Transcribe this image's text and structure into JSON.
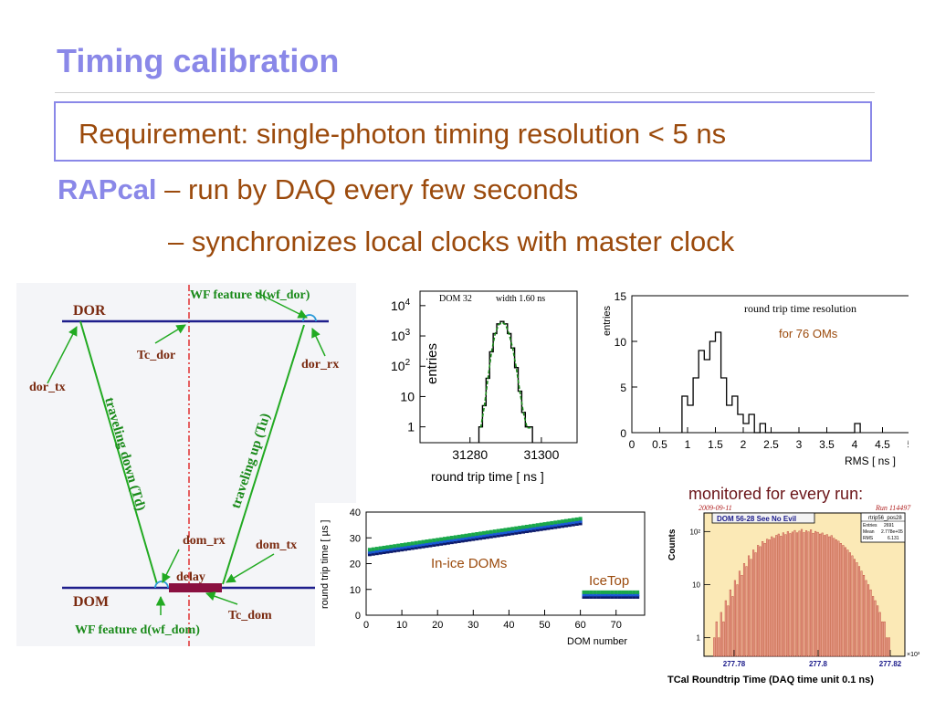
{
  "slide": {
    "title": "Timing calibration",
    "requirement": "Requirement:  single-photon timing resolution < 5 ns",
    "rapcal_name": "RAPcal",
    "rapcal_line1": " – run by DAQ every few seconds",
    "rapcal_line2": "– synchronizes local clocks with master clock",
    "monitored_caption": "monitored for every run:"
  },
  "diagram": {
    "dor_label": "DOR",
    "dom_label": "DOM",
    "wf_feature_dor": "WF feature d(wf_dor)",
    "wf_feature_dom": "WF feature d(wf_dom)",
    "tc_dor": "Tc_dor",
    "tc_dom": "Tc_dom",
    "dor_tx": "dor_tx",
    "dor_rx": "dor_rx",
    "dom_rx": "dom_rx",
    "dom_tx": "dom_tx",
    "delay": "delay",
    "traveling_down": "traveling down (Td)",
    "traveling_up": "traveling up (Tu)",
    "colors": {
      "line": "#1e1e8c",
      "arrow": "#22aa22",
      "label": "#7a2a10",
      "wf": "#1a8a1a",
      "center": "#e03030",
      "delay": "#8a1040"
    }
  },
  "chart_data": [
    {
      "type": "bar",
      "id": "round-trip-histogram",
      "annotations": [
        "DOM 32",
        "width 1.60 ns"
      ],
      "xlabel": "round trip time [ ns ]",
      "ylabel": "entries",
      "xticks": [
        "31280",
        "31300"
      ],
      "yticks": [
        "1",
        "10",
        "10^2",
        "10^3",
        "10^4"
      ],
      "yscale": "log",
      "xlim": [
        31266,
        31310
      ],
      "ylim": [
        0.3,
        30000
      ],
      "x": [
        31283,
        31284,
        31285,
        31286,
        31287,
        31288,
        31289,
        31290,
        31291,
        31292,
        31293,
        31294,
        31295,
        31296,
        31297
      ],
      "values": [
        1,
        5,
        40,
        300,
        1200,
        2500,
        3000,
        2500,
        1200,
        400,
        90,
        15,
        3,
        1,
        1
      ],
      "colors": {
        "hist": "#000000",
        "fit": "#1a8a1a"
      }
    },
    {
      "type": "bar",
      "id": "round-trip-resolution",
      "title": "round trip time resolution",
      "annotation": "for 76 OMs",
      "xlabel": "RMS [ ns ]",
      "ylabel": "entries",
      "xlim": [
        0,
        5
      ],
      "ylim": [
        0,
        15
      ],
      "xticks": [
        "0",
        "0.5",
        "1",
        "1.5",
        "2",
        "2.5",
        "3",
        "3.5",
        "4",
        "4.5",
        "5"
      ],
      "yticks": [
        "0",
        "5",
        "10",
        "15"
      ],
      "bin_width": 0.1,
      "bin_start": 0.9,
      "values": [
        4,
        3,
        6,
        9,
        8,
        10,
        11,
        6,
        3,
        4,
        2,
        1,
        2,
        0,
        1,
        0,
        0,
        0,
        0,
        0,
        0,
        0,
        0,
        0,
        0,
        0,
        0,
        0,
        0,
        0,
        0,
        1
      ],
      "colors": {
        "hist": "#000000",
        "annotation": "#9b4a0c"
      }
    },
    {
      "type": "scatter",
      "id": "round-trip-vs-dom",
      "xlabel": "DOM number",
      "ylabel": "round trip time [ µs ]",
      "xlim": [
        0,
        78
      ],
      "ylim": [
        0,
        40
      ],
      "xticks": [
        "0",
        "10",
        "20",
        "30",
        "40",
        "50",
        "60",
        "70"
      ],
      "yticks": [
        "0",
        "10",
        "20",
        "30",
        "40"
      ],
      "annotations": [
        "In-ice DOMs",
        "IceTop"
      ],
      "series": [
        {
          "name": "In-ice DOMs",
          "x_start": 1,
          "x_end": 60,
          "y_start": 24.5,
          "y_end": 36.5
        },
        {
          "name": "IceTop",
          "x_start": 61,
          "x_end": 76,
          "y_start": 8,
          "y_end": 8
        }
      ],
      "colors": {
        "markers": [
          "#0d1a6a",
          "#1a5ad8",
          "#1aa84a"
        ],
        "annotation": "#9b4a0c"
      }
    },
    {
      "type": "bar",
      "id": "tcal-roundtrip-monitor",
      "date_label": "2009-09-11",
      "run_label": "Run 114497",
      "title": "DOM 56-28 See  No  Evil",
      "stats": {
        "name": "rtrip56_pos28",
        "Entries": "2691",
        "Mean": "2.778e+05",
        "RMS": "6.131"
      },
      "xlabel": "TCal Roundtrip Time (DAQ time unit 0.1 ns)",
      "ylabel": "Counts",
      "xticks": [
        "277.78",
        "277.8",
        "277.82"
      ],
      "x_multiplier": "×10³",
      "yticks": [
        "1",
        "10",
        "10²"
      ],
      "yscale": "log",
      "values": [
        1,
        2,
        1,
        3,
        2,
        5,
        4,
        8,
        6,
        12,
        10,
        18,
        15,
        25,
        22,
        35,
        30,
        45,
        40,
        55,
        52,
        65,
        60,
        72,
        70,
        80,
        75,
        85,
        90,
        82,
        95,
        88,
        100,
        92,
        98,
        105,
        95,
        102,
        110,
        96,
        104,
        99,
        108,
        93,
        101,
        97,
        90,
        94,
        85,
        88,
        80,
        84,
        75,
        70,
        66,
        60,
        55,
        50,
        45,
        40,
        35,
        30,
        26,
        22,
        18,
        15,
        12,
        10,
        8,
        6,
        5,
        4,
        3,
        2,
        2,
        1,
        1
      ],
      "colors": {
        "background": "#fbe9b6",
        "bars": "#e8a08c",
        "bar_edge": "#b84030",
        "date": "#b02020"
      }
    }
  ]
}
